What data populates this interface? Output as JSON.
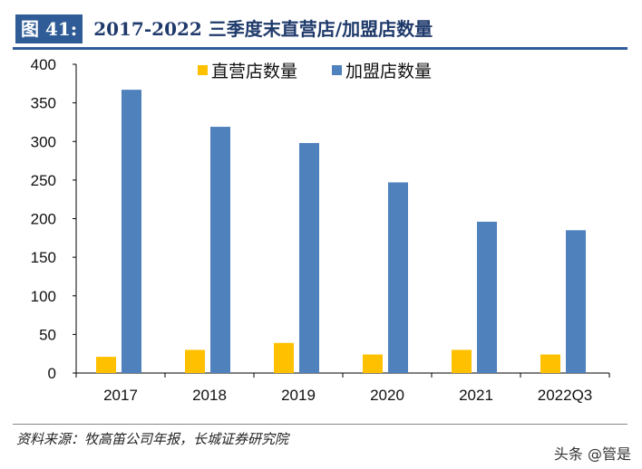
{
  "header": {
    "figure_label": "图 41:",
    "title": "2017-2022 三季度末直营店/加盟店数量"
  },
  "chart_data": {
    "type": "bar",
    "title": "2017-2022 三季度末直营店/加盟店数量",
    "categories": [
      "2017",
      "2018",
      "2019",
      "2020",
      "2021",
      "2022Q3"
    ],
    "series": [
      {
        "name": "直营店数量",
        "color": "#FFC000",
        "values": [
          21,
          30,
          39,
          24,
          30,
          24
        ]
      },
      {
        "name": "加盟店数量",
        "color": "#4F81BD",
        "values": [
          367,
          319,
          298,
          247,
          196,
          185
        ]
      }
    ],
    "ylim": [
      0,
      400
    ],
    "yticks": [
      "0",
      "50",
      "100",
      "150",
      "200",
      "250",
      "300",
      "350",
      "400"
    ],
    "grid": false,
    "legend": "top-center"
  },
  "footer": {
    "source": "资料来源：牧高笛公司年报，长城证券研究院",
    "watermark": "头条 @管是"
  }
}
